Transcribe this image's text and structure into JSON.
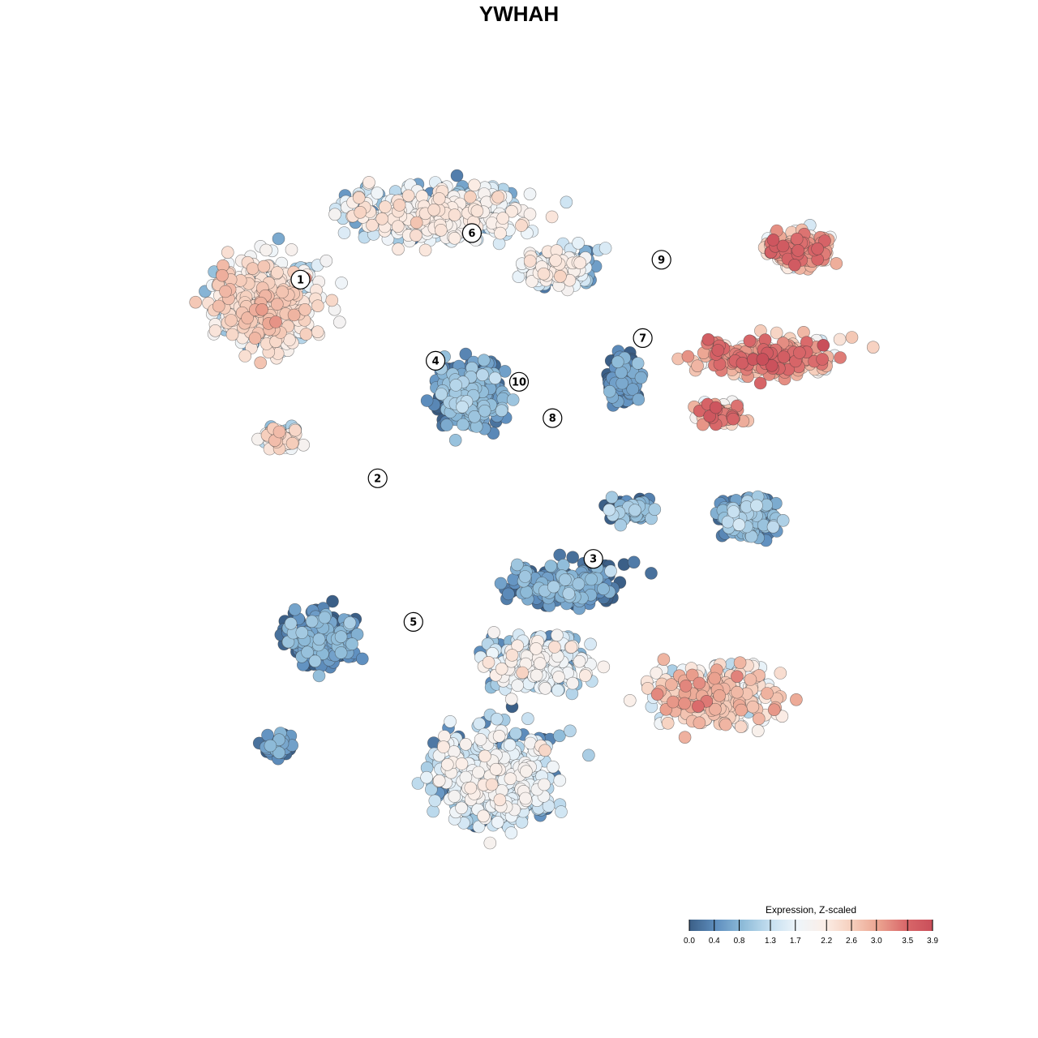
{
  "title": "YWHAH",
  "colors": {
    "scale": [
      "#3b5f87",
      "#5f8fbf",
      "#8fbcd9",
      "#c5dff0",
      "#eef5fa",
      "#fbeee7",
      "#f6cfbd",
      "#eba390",
      "#d9686a",
      "#c94f5a"
    ],
    "point_stroke": "#333333"
  },
  "chart_data": {
    "type": "scatter",
    "title": "YWHAH",
    "xlabel": "",
    "ylabel": "",
    "grid": false,
    "legend": {
      "title": "Expression, Z-scaled",
      "placement": "bottom-right",
      "ticks": [
        "0.0",
        "0.4",
        "0.8",
        "1.3",
        "1.7",
        "2.2",
        "2.6",
        "3.0",
        "3.5",
        "3.9"
      ],
      "min": 0.0,
      "max": 3.9
    },
    "clusters": [
      {
        "label": "1",
        "x": -26.5,
        "y": 23.6,
        "mean_expression": 2.2
      },
      {
        "label": "2",
        "x": -12.9,
        "y": -11.4,
        "mean_expression": 0.5
      },
      {
        "label": "3",
        "x": 25.1,
        "y": -25.6,
        "mean_expression": 2.4
      },
      {
        "label": "4",
        "x": -2.7,
        "y": 9.3,
        "mean_expression": 0.6
      },
      {
        "label": "5",
        "x": -6.6,
        "y": -36.7,
        "mean_expression": 1.5
      },
      {
        "label": "6",
        "x": 3.7,
        "y": 31.8,
        "mean_expression": 1.8
      },
      {
        "label": "7",
        "x": 33.8,
        "y": 13.3,
        "mean_expression": 3.0
      },
      {
        "label": "8",
        "x": 17.9,
        "y": -0.8,
        "mean_expression": 0.7
      },
      {
        "label": "9",
        "x": 37.1,
        "y": 27.1,
        "mean_expression": 3.0
      },
      {
        "label": "10",
        "x": 12.0,
        "y": 5.6,
        "mean_expression": 0.4
      }
    ]
  }
}
